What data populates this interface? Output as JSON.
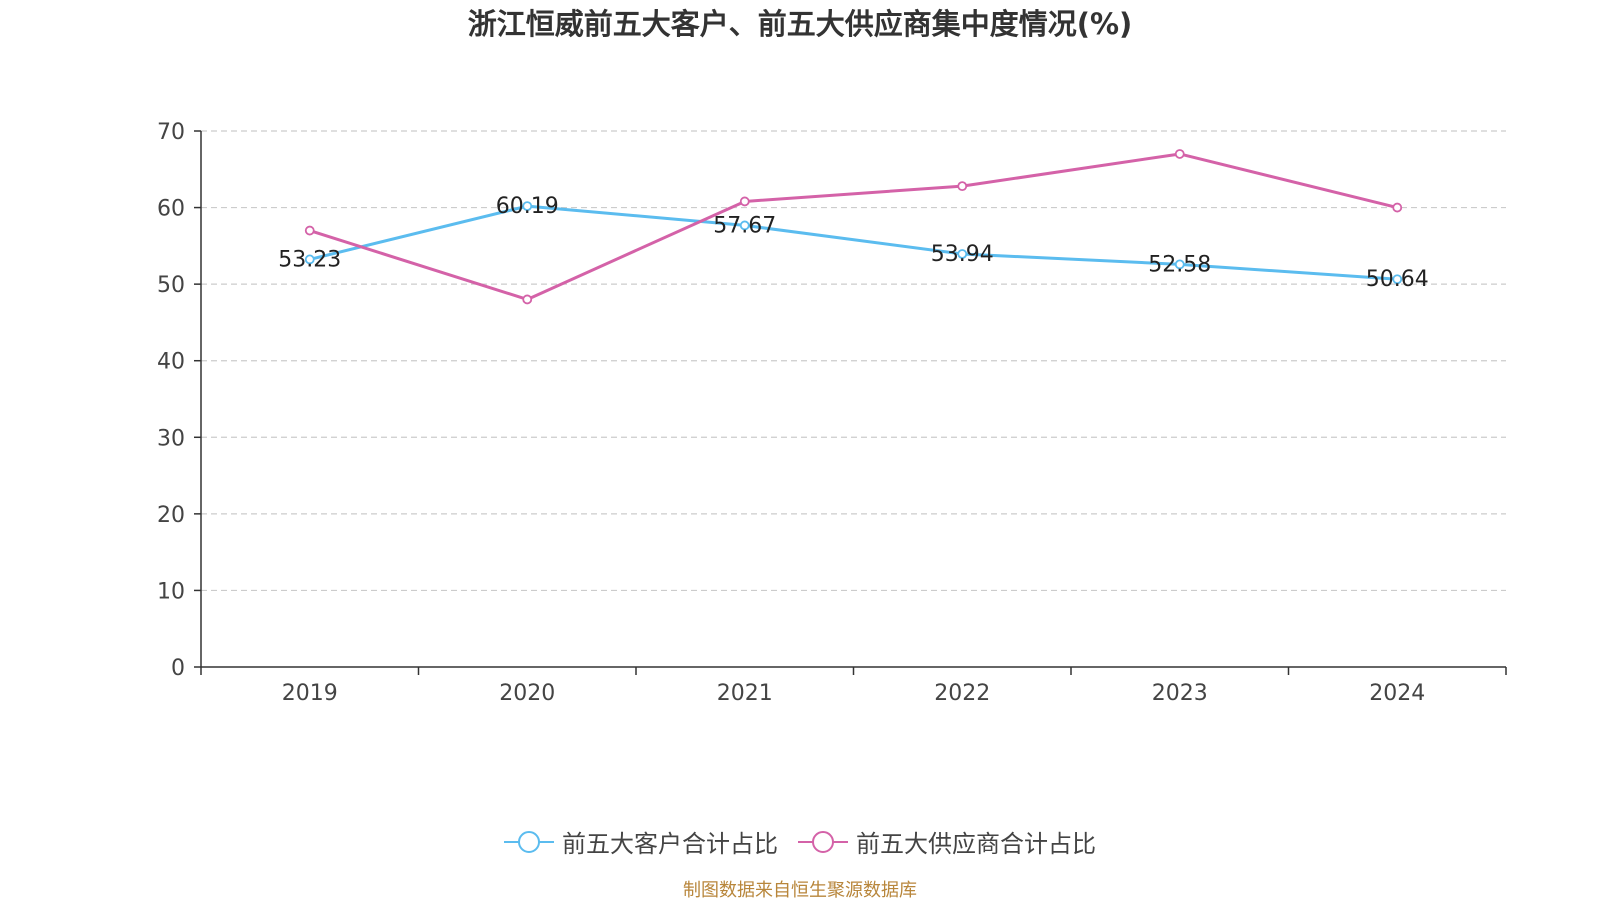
{
  "colors": {
    "customers": "#5bbcef",
    "suppliers": "#d462a8",
    "grid": "#cccccc",
    "axis": "#333333",
    "source": "#b8863b"
  },
  "source_note": "制图数据来自恒生聚源数据库",
  "chart_data": {
    "type": "line",
    "title": "浙江恒威前五大客户、前五大供应商集中度情况(%)",
    "xlabel": "",
    "ylabel": "",
    "categories": [
      "2019",
      "2020",
      "2021",
      "2022",
      "2023",
      "2024"
    ],
    "ylim": [
      0,
      70
    ],
    "yticks": [
      "0",
      "10",
      "20",
      "30",
      "40",
      "50",
      "60",
      "70"
    ],
    "grid": true,
    "legend_position": "bottom",
    "series": [
      {
        "name": "前五大客户合计占比",
        "values": [
          53.23,
          60.19,
          57.67,
          53.94,
          52.58,
          50.64
        ],
        "data_labels": [
          "53.23",
          "60.19",
          "57.67",
          "53.94",
          "52.58",
          "50.64"
        ]
      },
      {
        "name": "前五大供应商合计占比",
        "values": [
          57.0,
          48.0,
          60.8,
          62.8,
          67.0,
          60.0
        ]
      }
    ]
  }
}
